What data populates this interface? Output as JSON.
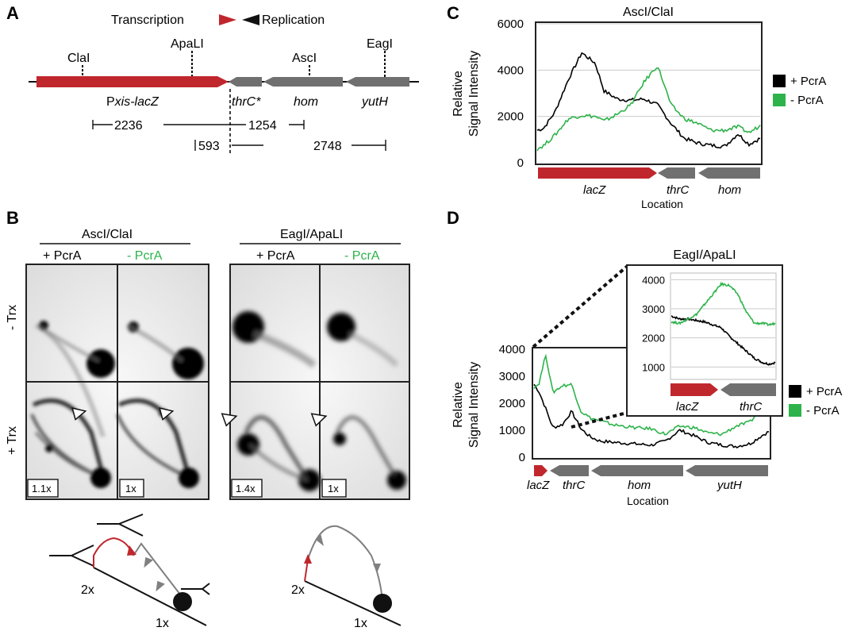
{
  "colors": {
    "red_gene": "#c0272d",
    "gray_gene": "#707070",
    "plus_pcra": "#000000",
    "minus_pcra": "#2db34a",
    "gridline": "#cccccc"
  },
  "panel_a": {
    "letter": "A",
    "transcription": "Transcription",
    "replication": "Replication",
    "sites": [
      "ClaI",
      "ApaLI",
      "AscI",
      "EagI"
    ],
    "genes": {
      "lacz_prefix": "P",
      "lacz_italic": "xis-lacZ",
      "thrc": "thrC*",
      "hom": "hom",
      "yuth": "yutH"
    },
    "distances": [
      "2236",
      "1254",
      "593",
      "2748"
    ]
  },
  "panel_b": {
    "letter": "B",
    "group_left": "AscI/ClaI",
    "group_right": "EagI/ApaLI",
    "cols": [
      "+ PcrA",
      "- PcrA",
      "+ PcrA",
      "- PcrA"
    ],
    "row_top": "- Trx",
    "row_bottom": "+ Trx",
    "scales": [
      "1.1x",
      "1x",
      "1.4x",
      "1x"
    ],
    "diagram_labels": [
      "2x",
      "1x",
      "2x",
      "1x"
    ]
  },
  "chart_data": [
    {
      "id": "C",
      "type": "line",
      "title": "AscI/ClaI",
      "xlabel": "Location",
      "ylabel": "Relative Signal Intensity",
      "ylim": [
        0,
        6000
      ],
      "yticks": [
        "6000",
        "4000",
        "2000",
        "0"
      ],
      "grid": true,
      "legend_position": "right",
      "legend": [
        "+ PcrA",
        "- PcrA"
      ],
      "gene_labels": [
        "lacZ",
        "thrC",
        "hom"
      ],
      "x": [
        0,
        0.03,
        0.08,
        0.14,
        0.2,
        0.26,
        0.3,
        0.36,
        0.42,
        0.48,
        0.54,
        0.6,
        0.66,
        0.72,
        0.78,
        0.84,
        0.9,
        0.95,
        1.0
      ],
      "series": [
        {
          "name": "+ PcrA",
          "values": [
            1400,
            1500,
            2200,
            3600,
            4750,
            4300,
            3100,
            2750,
            2700,
            2750,
            2500,
            1700,
            1050,
            850,
            750,
            700,
            1250,
            800,
            1050
          ]
        },
        {
          "name": "- PcrA",
          "values": [
            600,
            750,
            1200,
            1900,
            2050,
            2000,
            1800,
            2100,
            2500,
            3500,
            4200,
            2500,
            1900,
            1700,
            1400,
            1400,
            1550,
            1300,
            1600
          ]
        }
      ]
    },
    {
      "id": "D",
      "type": "line",
      "title": "EagI/ApaLI",
      "xlabel": "Location",
      "ylabel": "Relative Signal Intensity",
      "ylim": [
        0,
        4000
      ],
      "yticks": [
        "4000",
        "3000",
        "2000",
        "1000",
        "0"
      ],
      "grid": false,
      "legend_position": "right",
      "legend": [
        "+ PcrA",
        "- PcrA"
      ],
      "gene_labels": [
        "lacZ",
        "thrC",
        "hom",
        "yutH"
      ],
      "x": [
        0,
        0.02,
        0.05,
        0.08,
        0.12,
        0.16,
        0.2,
        0.24,
        0.28,
        0.34,
        0.42,
        0.5,
        0.56,
        0.62,
        0.68,
        0.74,
        0.8,
        0.86,
        0.92,
        0.97,
        1.0
      ],
      "series": [
        {
          "name": "+ PcrA",
          "values": [
            2700,
            2450,
            1800,
            1100,
            1200,
            1700,
            1050,
            750,
            600,
            550,
            500,
            450,
            600,
            1000,
            800,
            550,
            450,
            400,
            500,
            800,
            950
          ]
        },
        {
          "name": "- PcrA",
          "values": [
            2600,
            2700,
            3800,
            2400,
            2650,
            2700,
            1700,
            1450,
            1350,
            1200,
            1100,
            1050,
            850,
            1150,
            1100,
            900,
            850,
            1150,
            1300,
            1850,
            2100
          ]
        }
      ],
      "inset": {
        "ylim": [
          600,
          4200
        ],
        "yticks": [
          "4000",
          "3000",
          "2000",
          "1000"
        ],
        "gene_labels": [
          "lacZ",
          "thrC"
        ],
        "x": [
          0,
          0.08,
          0.16,
          0.24,
          0.32,
          0.4,
          0.48,
          0.56,
          0.64,
          0.72,
          0.8,
          0.88,
          0.94,
          1.0
        ],
        "series": [
          {
            "name": "+ PcrA",
            "values": [
              2750,
              2650,
              2650,
              2600,
              2550,
              2450,
              2350,
              2050,
              1800,
              1550,
              1300,
              1150,
              1100,
              1150
            ]
          },
          {
            "name": "- PcrA",
            "values": [
              2550,
              2500,
              2650,
              2800,
              3150,
              3500,
              3850,
              3800,
              3500,
              2900,
              2500,
              2500,
              2450,
              2500
            ]
          }
        ]
      }
    }
  ]
}
